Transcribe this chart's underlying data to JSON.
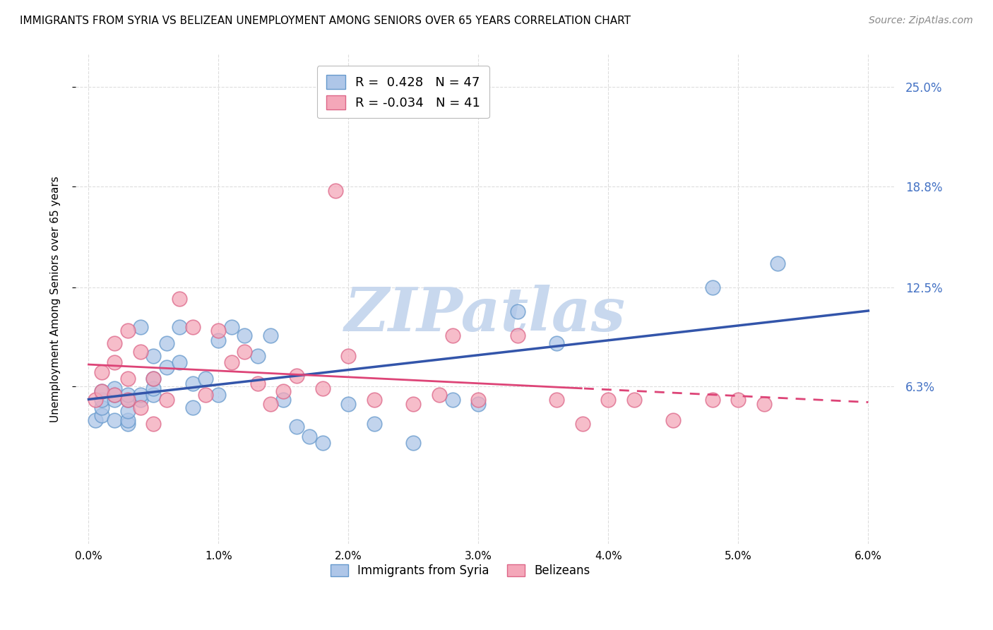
{
  "title": "IMMIGRANTS FROM SYRIA VS BELIZEAN UNEMPLOYMENT AMONG SENIORS OVER 65 YEARS CORRELATION CHART",
  "source": "Source: ZipAtlas.com",
  "ylabel": "Unemployment Among Seniors over 65 years",
  "xlim": [
    -0.001,
    0.062
  ],
  "ylim": [
    -0.035,
    0.27
  ],
  "yticks": [
    0.063,
    0.125,
    0.188,
    0.25
  ],
  "ytick_labels": [
    "6.3%",
    "12.5%",
    "18.8%",
    "25.0%"
  ],
  "xticks": [
    0.0,
    0.01,
    0.02,
    0.03,
    0.04,
    0.05,
    0.06
  ],
  "xtick_labels": [
    "0.0%",
    "1.0%",
    "2.0%",
    "3.0%",
    "4.0%",
    "5.0%",
    "6.0%"
  ],
  "legend_top": [
    {
      "label": "R =  0.428   N = 47",
      "color": "#aec6e8"
    },
    {
      "label": "R = -0.034   N = 41",
      "color": "#f4a7b9"
    }
  ],
  "series_blue": {
    "name": "Immigrants from Syria",
    "color": "#aec6e8",
    "edge_color": "#6699cc",
    "trend_color": "#3355aa",
    "x": [
      0.0005,
      0.001,
      0.001,
      0.001,
      0.001,
      0.002,
      0.002,
      0.002,
      0.002,
      0.003,
      0.003,
      0.003,
      0.003,
      0.003,
      0.004,
      0.004,
      0.004,
      0.005,
      0.005,
      0.005,
      0.005,
      0.006,
      0.006,
      0.007,
      0.007,
      0.008,
      0.008,
      0.009,
      0.01,
      0.01,
      0.011,
      0.012,
      0.013,
      0.014,
      0.015,
      0.016,
      0.017,
      0.018,
      0.02,
      0.022,
      0.025,
      0.028,
      0.03,
      0.033,
      0.036,
      0.048,
      0.053
    ],
    "y": [
      0.042,
      0.045,
      0.05,
      0.055,
      0.06,
      0.042,
      0.055,
      0.058,
      0.062,
      0.04,
      0.042,
      0.048,
      0.055,
      0.058,
      0.055,
      0.058,
      0.1,
      0.058,
      0.062,
      0.068,
      0.082,
      0.075,
      0.09,
      0.078,
      0.1,
      0.05,
      0.065,
      0.068,
      0.058,
      0.092,
      0.1,
      0.095,
      0.082,
      0.095,
      0.055,
      0.038,
      0.032,
      0.028,
      0.052,
      0.04,
      0.028,
      0.055,
      0.052,
      0.11,
      0.09,
      0.125,
      0.14
    ]
  },
  "series_pink": {
    "name": "Belizeans",
    "color": "#f4a7b9",
    "edge_color": "#dd6688",
    "trend_color": "#dd4477",
    "x": [
      0.0005,
      0.001,
      0.001,
      0.002,
      0.002,
      0.002,
      0.003,
      0.003,
      0.003,
      0.004,
      0.004,
      0.005,
      0.005,
      0.006,
      0.007,
      0.008,
      0.009,
      0.01,
      0.011,
      0.012,
      0.013,
      0.014,
      0.015,
      0.016,
      0.018,
      0.019,
      0.02,
      0.022,
      0.025,
      0.027,
      0.028,
      0.03,
      0.033,
      0.036,
      0.038,
      0.04,
      0.042,
      0.045,
      0.048,
      0.05,
      0.052
    ],
    "y": [
      0.055,
      0.06,
      0.072,
      0.058,
      0.078,
      0.09,
      0.055,
      0.068,
      0.098,
      0.05,
      0.085,
      0.04,
      0.068,
      0.055,
      0.118,
      0.1,
      0.058,
      0.098,
      0.078,
      0.085,
      0.065,
      0.052,
      0.06,
      0.07,
      0.062,
      0.185,
      0.082,
      0.055,
      0.052,
      0.058,
      0.095,
      0.055,
      0.095,
      0.055,
      0.04,
      0.055,
      0.055,
      0.042,
      0.055,
      0.055,
      0.052
    ]
  },
  "watermark": "ZIPatlas",
  "watermark_color": "#c8d8ee",
  "background_color": "#ffffff",
  "grid_color": "#dddddd",
  "grid_style": ":"
}
